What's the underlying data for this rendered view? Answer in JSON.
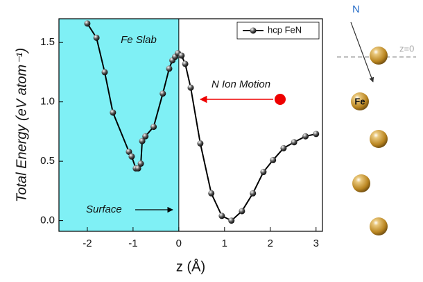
{
  "chart_data": {
    "type": "line",
    "x_label": "z (Å)",
    "y_label": "Total Energy (eV atom⁻¹)",
    "xlim": [
      -2.62,
      3.14
    ],
    "ylim": [
      -0.09,
      1.7
    ],
    "xticks": [
      -2,
      -1,
      0,
      1,
      2,
      3
    ],
    "yticks": [
      {
        "value": 0,
        "label": "0.0"
      },
      {
        "value": 0.5,
        "label": "0.5"
      },
      {
        "value": 1,
        "label": "1.0"
      },
      {
        "value": 1.5,
        "label": "1.5"
      }
    ],
    "shade_color": "#7ff0f5",
    "annotations": [
      "Fe Slab",
      "Surface",
      "N Ion Motion"
    ],
    "legend": "upper right",
    "series": [
      {
        "name": "hcp FeN",
        "color": "#000000",
        "x": [
          -2.0,
          -1.8,
          -1.62,
          -1.44,
          -1.09,
          -1.03,
          -0.94,
          -0.89,
          -0.83,
          -0.8,
          -0.73,
          -0.55,
          -0.35,
          -0.21,
          -0.14,
          -0.08,
          -0.02,
          0.06,
          0.14,
          0.26,
          0.47,
          0.71,
          0.94,
          1.15,
          1.38,
          1.62,
          1.85,
          2.06,
          2.29,
          2.52,
          2.77,
          3.0
        ],
        "values": [
          1.66,
          1.54,
          1.25,
          0.91,
          0.58,
          0.54,
          0.44,
          0.44,
          0.48,
          0.67,
          0.71,
          0.79,
          1.07,
          1.28,
          1.35,
          1.38,
          1.41,
          1.39,
          1.32,
          1.12,
          0.65,
          0.23,
          0.04,
          0.0,
          0.08,
          0.23,
          0.41,
          0.51,
          0.61,
          0.66,
          0.71,
          0.73
        ]
      }
    ]
  },
  "schematic": {
    "n_label": "N",
    "plane_label": "z=0",
    "fe_label": "Fe"
  }
}
